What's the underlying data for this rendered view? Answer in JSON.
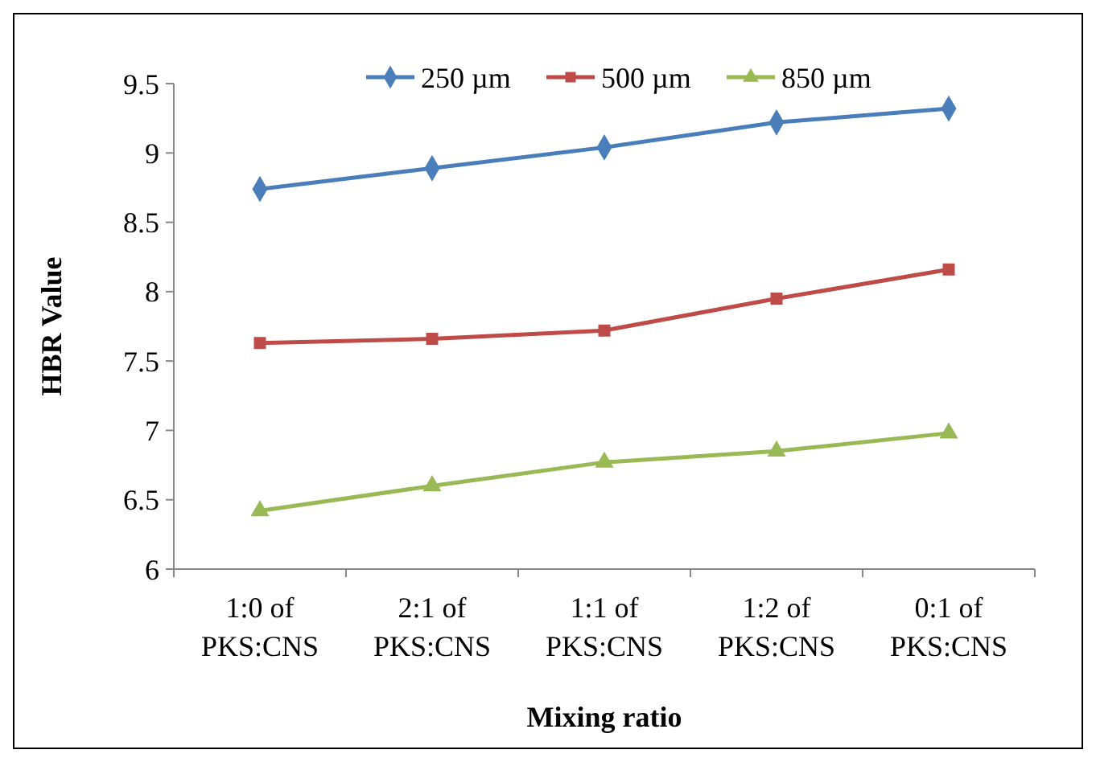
{
  "chart_data": {
    "type": "line",
    "xlabel": "Mixing ratio",
    "ylabel": "HBR Value",
    "categories": [
      "1:0 of PKS:CNS",
      "2:1 of PKS:CNS",
      "1:1 of PKS:CNS",
      "1:2 of PKS:CNS",
      "0:1 of PKS:CNS"
    ],
    "series": [
      {
        "name": "250 µm",
        "color": "#4a7ebb",
        "marker": "diamond",
        "values": [
          8.74,
          8.89,
          9.04,
          9.22,
          9.32
        ]
      },
      {
        "name": "500 µm",
        "color": "#be4b48",
        "marker": "square",
        "values": [
          7.63,
          7.66,
          7.72,
          7.95,
          8.16
        ]
      },
      {
        "name": "850 µm",
        "color": "#98b954",
        "marker": "triangle",
        "values": [
          6.42,
          6.6,
          6.77,
          6.85,
          6.98
        ]
      }
    ],
    "ylim": [
      6,
      9.5
    ],
    "yticks": [
      6,
      6.5,
      7,
      7.5,
      8,
      8.5,
      9,
      9.5
    ],
    "grid": false,
    "legend": "top"
  }
}
